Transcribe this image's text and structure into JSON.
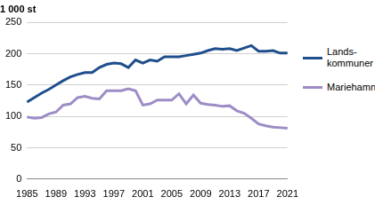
{
  "chart_data": {
    "type": "line",
    "title": "1 000 st",
    "categories": [
      "1985",
      null,
      null,
      null,
      "1989",
      null,
      null,
      null,
      "1993",
      null,
      null,
      null,
      "1997",
      null,
      null,
      null,
      "2001",
      null,
      null,
      null,
      "2005",
      null,
      null,
      null,
      "2009",
      null,
      null,
      null,
      "2013",
      null,
      null,
      null,
      "2017",
      null,
      null,
      null,
      "2021"
    ],
    "series": [
      {
        "name": "Lands-kommuner",
        "color": "#1f4e8c",
        "values": [
          123,
          130,
          137,
          143,
          150,
          157,
          163,
          167,
          170,
          170,
          178,
          183,
          185,
          184,
          178,
          190,
          185,
          190,
          188,
          195,
          195,
          195,
          197,
          199,
          201,
          205,
          208,
          207,
          208,
          205,
          209,
          213,
          204,
          204,
          205,
          201,
          201
        ]
      },
      {
        "name": "Mariehamn",
        "color": "#9d8cc6",
        "values": [
          99,
          97,
          98,
          104,
          107,
          118,
          120,
          130,
          132,
          129,
          128,
          141,
          141,
          141,
          144,
          141,
          118,
          120,
          126,
          126,
          126,
          136,
          120,
          134,
          121,
          119,
          118,
          116,
          117,
          109,
          105,
          97,
          88,
          85,
          83,
          82,
          81
        ]
      }
    ],
    "ylim": [
      0,
      250
    ],
    "yticks": [
      0,
      50,
      100,
      150,
      200,
      250
    ],
    "grid": true,
    "legend": "right"
  }
}
